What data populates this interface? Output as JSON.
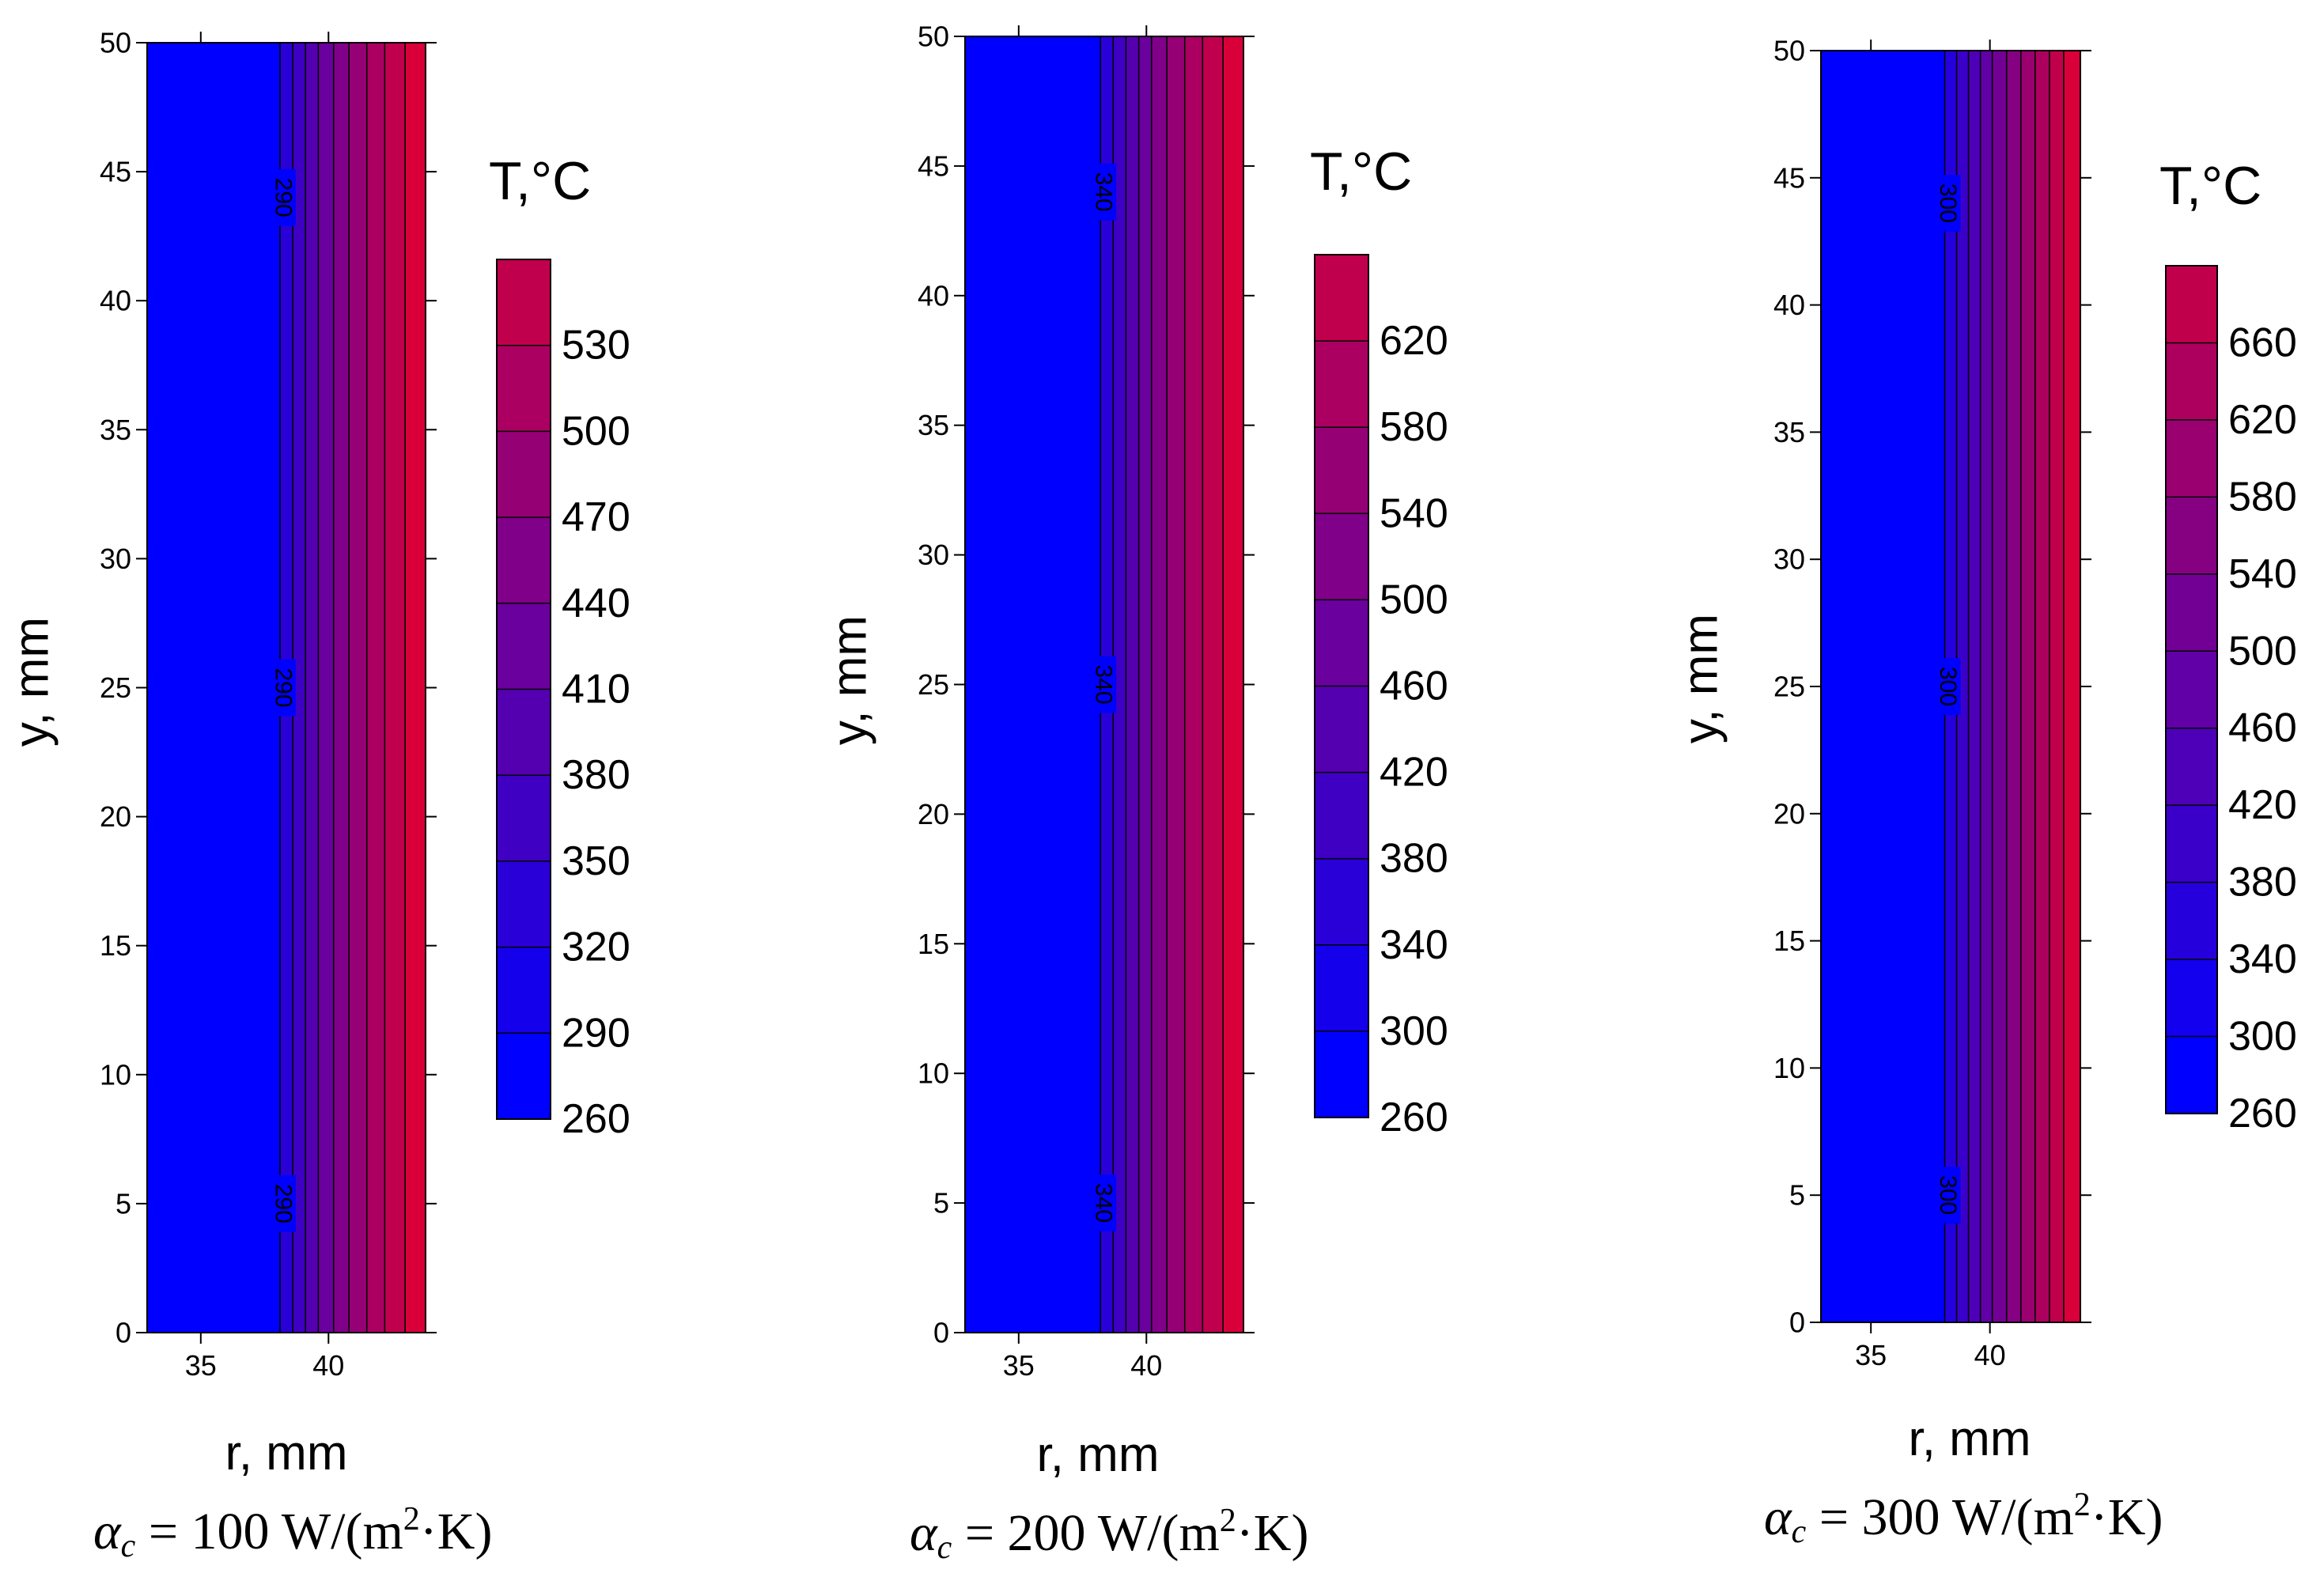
{
  "chart_data": [
    {
      "type": "heatmap",
      "title": "",
      "xlabel": "r, mm",
      "ylabel": "y, mm",
      "xlim": [
        32.9,
        43.8
      ],
      "ylim": [
        0,
        50
      ],
      "xticks": [
        35,
        40
      ],
      "yticks": [
        0,
        5,
        10,
        15,
        20,
        25,
        30,
        35,
        40,
        45,
        50
      ],
      "colorbar": {
        "title": "T,°C",
        "levels": [
          260,
          290,
          320,
          350,
          380,
          410,
          440,
          470,
          500,
          530
        ],
        "max": 560,
        "colors": [
          "#0000ff",
          "#1500ec",
          "#2a00d8",
          "#3f00c4",
          "#5500b0",
          "#6a009d",
          "#800089",
          "#960075",
          "#ab0061",
          "#c1004d",
          "#e0001f"
        ]
      },
      "contour_bands": [
        {
          "r_start": 32.9,
          "r_end": 38.1,
          "color": "#0000ff"
        },
        {
          "r_start": 38.1,
          "r_end": 38.6,
          "color": "#2a00d8"
        },
        {
          "r_start": 38.6,
          "r_end": 39.1,
          "color": "#3f00c4"
        },
        {
          "r_start": 39.1,
          "r_end": 39.6,
          "color": "#5500b0"
        },
        {
          "r_start": 39.6,
          "r_end": 40.2,
          "color": "#6a009d"
        },
        {
          "r_start": 40.2,
          "r_end": 40.8,
          "color": "#800089"
        },
        {
          "r_start": 40.8,
          "r_end": 41.5,
          "color": "#960075"
        },
        {
          "r_start": 41.5,
          "r_end": 42.2,
          "color": "#ab0061"
        },
        {
          "r_start": 42.2,
          "r_end": 43.0,
          "color": "#c1004d"
        },
        {
          "r_start": 43.0,
          "r_end": 43.8,
          "color": "#d9003a"
        }
      ],
      "contour_label": {
        "value": "290",
        "r": 38.1,
        "y_positions": [
          44,
          25,
          5
        ]
      },
      "caption": {
        "symbol": "α",
        "subscript": "c",
        "text": " = 100 W/(m",
        "sup": "2",
        "tail": "·K)"
      }
    },
    {
      "type": "heatmap",
      "title": "",
      "xlabel": "r, mm",
      "ylabel": "y, mm",
      "xlim": [
        32.9,
        43.8
      ],
      "ylim": [
        0,
        50
      ],
      "xticks": [
        35,
        40
      ],
      "yticks": [
        0,
        5,
        10,
        15,
        20,
        25,
        30,
        35,
        40,
        45,
        50
      ],
      "colorbar": {
        "title": "T,°C",
        "levels": [
          260,
          300,
          340,
          380,
          420,
          460,
          500,
          540,
          580,
          620
        ],
        "max": 660,
        "colors": [
          "#0000ff",
          "#1500ec",
          "#2a00d8",
          "#3f00c4",
          "#5500b0",
          "#6a009d",
          "#800089",
          "#960075",
          "#ab0061",
          "#c1004d",
          "#e0001f"
        ]
      },
      "contour_bands": [
        {
          "r_start": 32.9,
          "r_end": 38.2,
          "color": "#0000ff"
        },
        {
          "r_start": 38.2,
          "r_end": 38.7,
          "color": "#2a00d8"
        },
        {
          "r_start": 38.7,
          "r_end": 39.2,
          "color": "#3f00c4"
        },
        {
          "r_start": 39.2,
          "r_end": 39.7,
          "color": "#5500b0"
        },
        {
          "r_start": 39.7,
          "r_end": 40.2,
          "color": "#6a009d"
        },
        {
          "r_start": 40.2,
          "r_end": 40.8,
          "color": "#800089"
        },
        {
          "r_start": 40.8,
          "r_end": 41.5,
          "color": "#960075"
        },
        {
          "r_start": 41.5,
          "r_end": 42.2,
          "color": "#ab0061"
        },
        {
          "r_start": 42.2,
          "r_end": 43.0,
          "color": "#c1004d"
        },
        {
          "r_start": 43.0,
          "r_end": 43.8,
          "color": "#d9003a"
        }
      ],
      "contour_label": {
        "value": "340",
        "r": 38.2,
        "y_positions": [
          44,
          25,
          5
        ]
      },
      "caption": {
        "symbol": "α",
        "subscript": "c",
        "text": " = 200 W/(m",
        "sup": "2",
        "tail": "·K)"
      }
    },
    {
      "type": "heatmap",
      "title": "",
      "xlabel": "r, mm",
      "ylabel": "y, mm",
      "xlim": [
        32.9,
        43.8
      ],
      "ylim": [
        0,
        50
      ],
      "xticks": [
        35,
        40
      ],
      "yticks": [
        0,
        5,
        10,
        15,
        20,
        25,
        30,
        35,
        40,
        45,
        50
      ],
      "colorbar": {
        "title": "T,°C",
        "levels": [
          260,
          300,
          340,
          380,
          420,
          460,
          500,
          540,
          580,
          620,
          660
        ],
        "max": 700,
        "colors": [
          "#0000ff",
          "#1300ee",
          "#2600dc",
          "#3a00ca",
          "#4d00b8",
          "#6000a6",
          "#730094",
          "#860082",
          "#9a0070",
          "#ad005e",
          "#c1004c",
          "#e0001f"
        ]
      },
      "contour_bands": [
        {
          "r_start": 32.9,
          "r_end": 38.1,
          "color": "#0000ff"
        },
        {
          "r_start": 38.1,
          "r_end": 38.6,
          "color": "#2600dc"
        },
        {
          "r_start": 38.6,
          "r_end": 39.1,
          "color": "#3a00ca"
        },
        {
          "r_start": 39.1,
          "r_end": 39.6,
          "color": "#4d00b8"
        },
        {
          "r_start": 39.6,
          "r_end": 40.1,
          "color": "#6000a6"
        },
        {
          "r_start": 40.1,
          "r_end": 40.7,
          "color": "#730094"
        },
        {
          "r_start": 40.7,
          "r_end": 41.3,
          "color": "#860082"
        },
        {
          "r_start": 41.3,
          "r_end": 41.9,
          "color": "#9a0070"
        },
        {
          "r_start": 41.9,
          "r_end": 42.5,
          "color": "#ad005e"
        },
        {
          "r_start": 42.5,
          "r_end": 43.1,
          "color": "#c1004c"
        },
        {
          "r_start": 43.1,
          "r_end": 43.8,
          "color": "#d9003a"
        }
      ],
      "contour_label": {
        "value": "300",
        "r": 38.1,
        "y_positions": [
          44,
          25,
          5
        ]
      },
      "caption": {
        "symbol": "α",
        "subscript": "c",
        "text": " = 300 W/(m",
        "sup": "2",
        "tail": "·K)"
      }
    }
  ]
}
